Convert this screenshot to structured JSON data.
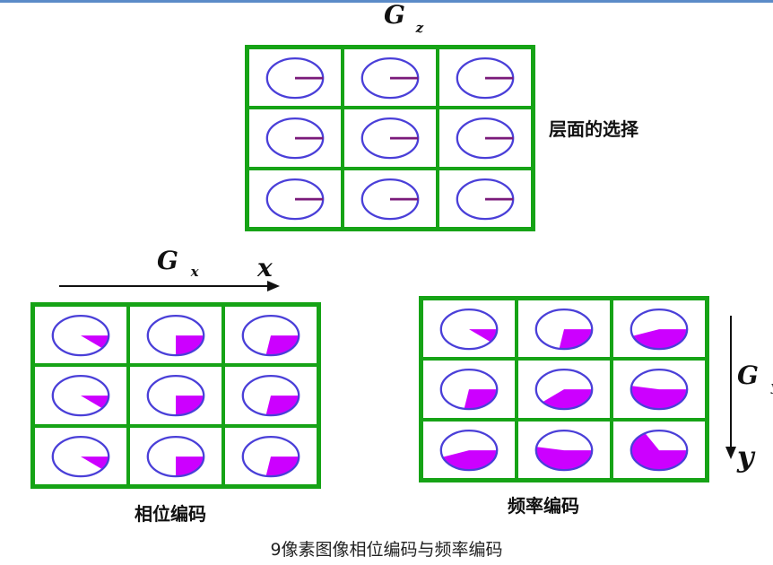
{
  "labels": {
    "gz_main": "G",
    "gz_sub": "z",
    "gx_main": "G",
    "gx_sub": "x",
    "x_axis": "x",
    "gy_main": "G",
    "gy_sub": "y",
    "y_axis": "y",
    "slice_select": "层面的选择",
    "phase_encoding": "相位编码",
    "frequency_encoding": "频率编码",
    "caption": "9像素图像相位编码与频率编码"
  },
  "colors": {
    "grid": "#16a316",
    "circle": "#4a3fd8",
    "vector": "#7a1a7a",
    "fill": "#cc00ff",
    "text": "#111111"
  },
  "grids": {
    "slice": {
      "rows": 3,
      "cols": 3,
      "phase_degrees": [
        [
          0,
          0,
          0
        ],
        [
          0,
          0,
          0
        ],
        [
          0,
          0,
          0
        ]
      ],
      "style": "line"
    },
    "phase": {
      "rows": 3,
      "cols": 3,
      "phase_degrees": [
        [
          40,
          90,
          100
        ],
        [
          40,
          90,
          100
        ],
        [
          40,
          90,
          100
        ]
      ],
      "style": "sector"
    },
    "frequency": {
      "rows": 3,
      "cols": 3,
      "phase_degrees": [
        [
          40,
          100,
          160
        ],
        [
          100,
          140,
          190
        ],
        [
          160,
          190,
          240
        ]
      ],
      "style": "sector"
    }
  }
}
